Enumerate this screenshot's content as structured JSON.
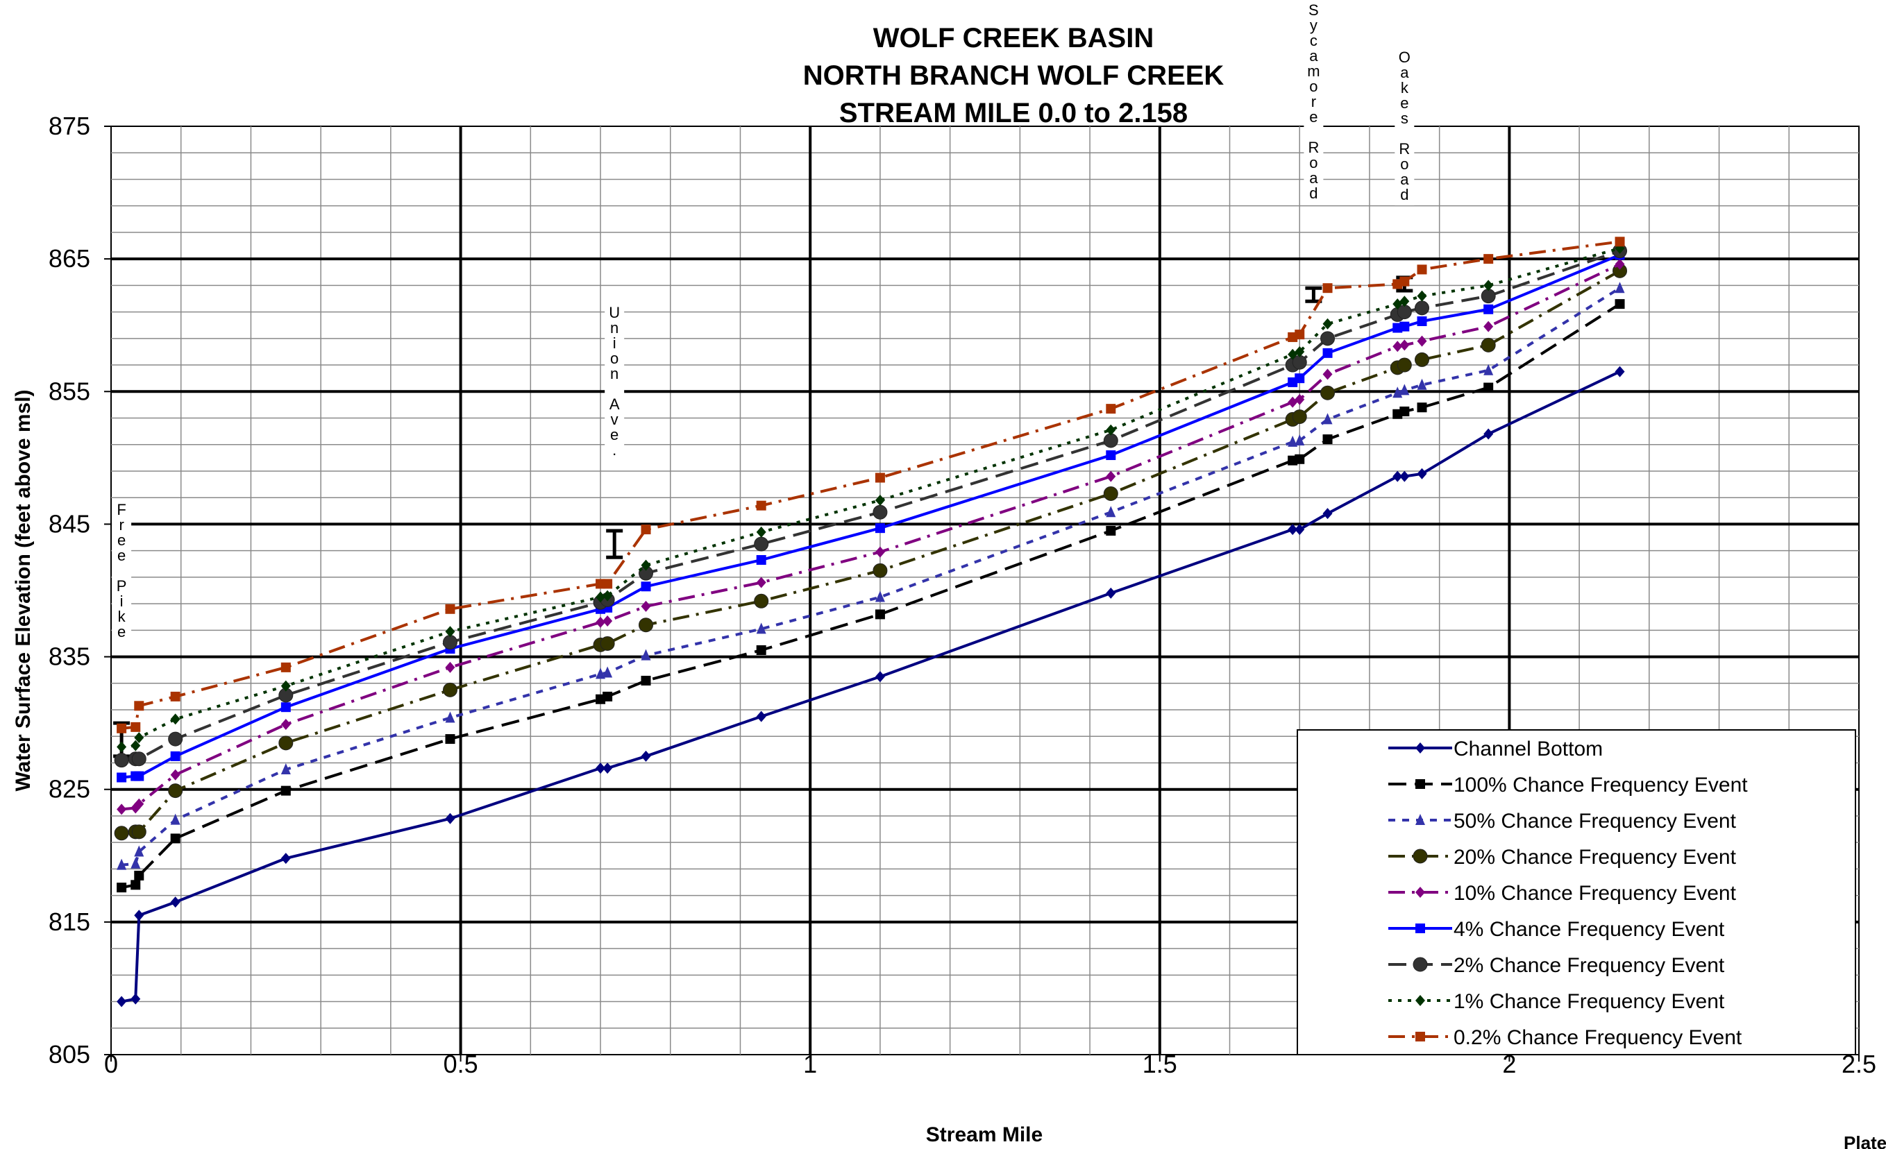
{
  "chart_data": {
    "type": "line",
    "title": [
      "WOLF CREEK BASIN",
      "NORTH BRANCH WOLF CREEK",
      "STREAM MILE 0.0 to 2.158"
    ],
    "xlabel": "Stream Mile",
    "ylabel": "Water Surface Elevation (feet above msl)",
    "xlim": [
      0,
      2.5
    ],
    "ylim": [
      805,
      875
    ],
    "x_ticks": [
      0,
      0.5,
      1,
      1.5,
      2,
      2.5
    ],
    "x_tick_labels": [
      "0",
      "0.5",
      "1",
      "1.5",
      "2",
      "2.5"
    ],
    "y_ticks": [
      805,
      815,
      825,
      835,
      845,
      855,
      865,
      875
    ],
    "y_tick_labels": [
      "805",
      "815",
      "825",
      "835",
      "845",
      "855",
      "865",
      "875"
    ],
    "grid": true,
    "legend_position": "bottom-right",
    "x": [
      0.015,
      0.035,
      0.04,
      0.092,
      0.25,
      0.485,
      0.7,
      0.71,
      0.765,
      0.93,
      1.1,
      1.43,
      1.69,
      1.7,
      1.74,
      1.84,
      1.85,
      1.875,
      1.97,
      2.158
    ],
    "series": [
      {
        "name": "Channel Bottom",
        "color": "#000080",
        "dash": "solid",
        "marker": "diamond",
        "values": [
          809,
          809.2,
          815.5,
          816.5,
          819.8,
          822.8,
          826.6,
          826.6,
          827.5,
          830.5,
          833.5,
          839.8,
          844.6,
          844.6,
          845.8,
          848.6,
          848.6,
          848.8,
          851.8,
          856.5
        ]
      },
      {
        "name": "100% Chance Frequency Event",
        "color": "#000000",
        "dash": "longdash",
        "marker": "square",
        "values": [
          817.6,
          817.8,
          818.5,
          821.3,
          824.9,
          828.8,
          831.8,
          832.0,
          833.2,
          835.5,
          838.2,
          844.5,
          849.8,
          849.9,
          851.4,
          853.3,
          853.5,
          853.8,
          855.3,
          861.6
        ]
      },
      {
        "name": "50% Chance Frequency Event",
        "color": "#3333aa",
        "dash": "shortdash",
        "marker": "triangle",
        "values": [
          819.3,
          819.4,
          820.3,
          822.7,
          826.5,
          830.4,
          833.7,
          833.8,
          835.1,
          837.1,
          839.5,
          845.9,
          851.2,
          851.3,
          852.9,
          854.9,
          855.1,
          855.5,
          856.6,
          862.8
        ]
      },
      {
        "name": "20% Chance Frequency Event",
        "color": "#333300",
        "dash": "dashdot",
        "marker": "circle",
        "values": [
          821.7,
          821.8,
          821.8,
          824.9,
          828.5,
          832.5,
          835.9,
          836.0,
          837.4,
          839.2,
          841.5,
          847.3,
          852.9,
          853.1,
          854.9,
          856.8,
          857.0,
          857.4,
          858.5,
          864.1
        ]
      },
      {
        "name": "10% Chance Frequency Event",
        "color": "#800080",
        "dash": "dashdot",
        "marker": "diamond",
        "values": [
          823.5,
          823.6,
          823.9,
          826.1,
          829.9,
          834.2,
          837.6,
          837.7,
          838.8,
          840.6,
          842.9,
          848.6,
          854.2,
          854.4,
          856.3,
          858.4,
          858.5,
          858.8,
          859.9,
          864.6
        ]
      },
      {
        "name": "4% Chance Frequency Event",
        "color": "#0000ff",
        "dash": "solid",
        "marker": "square",
        "values": [
          825.9,
          826.0,
          826.0,
          827.5,
          831.2,
          835.6,
          838.6,
          838.7,
          840.3,
          842.3,
          844.7,
          850.2,
          855.7,
          856.0,
          857.9,
          859.8,
          859.9,
          860.3,
          861.2,
          865.3
        ]
      },
      {
        "name": "2% Chance Frequency Event",
        "color": "#333333",
        "dash": "longdash",
        "marker": "circle",
        "values": [
          827.2,
          827.3,
          827.3,
          828.8,
          832.1,
          836.1,
          839.1,
          839.3,
          841.3,
          843.5,
          845.9,
          851.3,
          857.0,
          857.2,
          859.0,
          860.8,
          861.0,
          861.3,
          862.2,
          865.6
        ]
      },
      {
        "name": "1% Chance Frequency Event",
        "color": "#003300",
        "dash": "dotted",
        "marker": "diamond",
        "values": [
          828.2,
          828.3,
          828.9,
          830.3,
          832.8,
          836.9,
          839.5,
          839.6,
          841.9,
          844.4,
          846.8,
          852.1,
          857.8,
          858.0,
          860.1,
          861.6,
          861.8,
          862.2,
          863.0,
          865.8
        ]
      },
      {
        "name": "0.2% Chance Frequency Event",
        "color": "#aa3300",
        "dash": "dashdot",
        "marker": "square",
        "values": [
          829.6,
          829.7,
          831.3,
          832.0,
          834.2,
          838.6,
          840.5,
          840.5,
          844.6,
          846.4,
          848.5,
          853.7,
          859.1,
          859.3,
          862.8,
          863.1,
          863.3,
          864.2,
          865.0,
          866.3
        ]
      }
    ],
    "annotations": [
      {
        "text": "Free Pike",
        "x": 0.015,
        "y_low": 827.5,
        "y_high": 830
      },
      {
        "text": "Union Ave.",
        "x": 0.72,
        "y_low": 842.5,
        "y_high": 844.5
      },
      {
        "text": "Sycamore Road",
        "x": 1.72,
        "y_low": 861.8,
        "y_high": 862.8
      },
      {
        "text": "Oakes Road",
        "x": 1.85,
        "y_low": 862.6,
        "y_high": 863.6
      }
    ]
  },
  "footer_label": "Plate"
}
